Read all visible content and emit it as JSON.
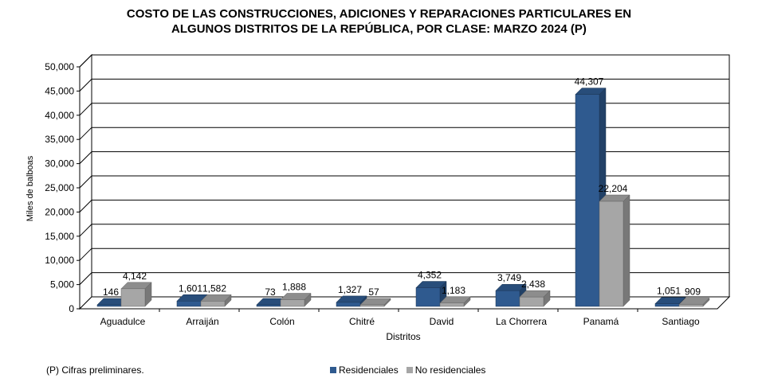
{
  "chart_data": {
    "type": "bar",
    "title_lines": [
      "COSTO DE LAS CONSTRUCCIONES, ADICIONES Y REPARACIONES PARTICULARES EN",
      "ALGUNOS DISTRITOS DE LA REPÚBLICA, POR CLASE: MARZO 2024 (P)"
    ],
    "xlabel": "Distritos",
    "ylabel": "Miles de balboas",
    "ylim": [
      0,
      50000
    ],
    "yticks": [
      0,
      5000,
      10000,
      15000,
      20000,
      25000,
      30000,
      35000,
      40000,
      45000,
      50000
    ],
    "ytick_labels": [
      "0",
      "5,000",
      "10,000",
      "15,000",
      "20,000",
      "25,000",
      "30,000",
      "35,000",
      "40,000",
      "45,000",
      "50,000"
    ],
    "grid": true,
    "categories": [
      "Aguadulce",
      "Arraiján",
      "Colón",
      "Chitré",
      "David",
      "La Chorrera",
      "Panamá",
      "Santiago"
    ],
    "series": [
      {
        "name": "Residenciales",
        "color": "#2f5a8f",
        "values": [
          146,
          1601,
          73,
          1327,
          4352,
          3749,
          44307,
          1051
        ],
        "labels": [
          "146",
          "1,601",
          "73",
          "1,327",
          "4,352",
          "3,749",
          "44,307",
          "1,051"
        ]
      },
      {
        "name": "No residenciales",
        "color": "#a6a6a6",
        "values": [
          4142,
          1582,
          1888,
          57,
          1183,
          2438,
          22204,
          909
        ],
        "labels": [
          "4,142",
          "1,582",
          "1,888",
          "57",
          "1,183",
          "2,438",
          "22,204",
          "909"
        ]
      }
    ],
    "legend_position": "bottom"
  },
  "footnote": "(P) Cifras  preliminares."
}
